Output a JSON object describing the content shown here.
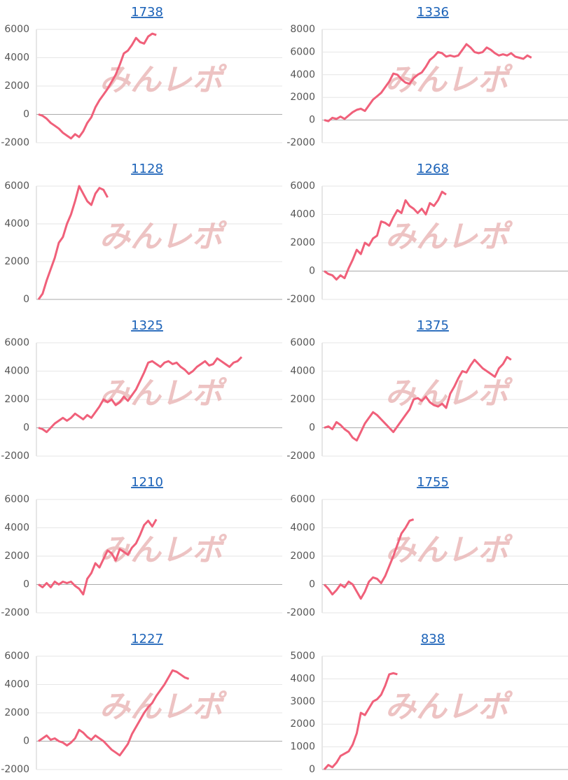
{
  "watermark": "みんレポ",
  "chart_data": [
    {
      "type": "line",
      "title": "1738",
      "color": "#f0607a",
      "ylim": [
        -2000,
        6000
      ],
      "yticks": [
        -2000,
        0,
        2000,
        4000,
        6000
      ],
      "grid": true,
      "values": [
        0,
        -100,
        -300,
        -600,
        -800,
        -1000,
        -1300,
        -1500,
        -1700,
        -1400,
        -1600,
        -1200,
        -600,
        -200,
        500,
        1000,
        1400,
        1800,
        2300,
        2800,
        3500,
        4300,
        4500,
        4900,
        5400,
        5100,
        5000,
        5500,
        5700,
        5600
      ]
    },
    {
      "type": "line",
      "title": "1336",
      "color": "#f0607a",
      "ylim": [
        -2000,
        8000
      ],
      "yticks": [
        -2000,
        0,
        2000,
        4000,
        6000,
        8000
      ],
      "grid": true,
      "values": [
        0,
        -100,
        200,
        100,
        300,
        100,
        400,
        700,
        900,
        1000,
        800,
        1300,
        1800,
        2100,
        2400,
        2900,
        3400,
        4100,
        4000,
        3600,
        3300,
        3200,
        3700,
        4000,
        4200,
        4700,
        5300,
        5600,
        6000,
        5900,
        5600,
        5700,
        5600,
        5700,
        6200,
        6700,
        6400,
        6000,
        5900,
        6000,
        6400,
        6200,
        5900,
        5700,
        5800,
        5700,
        5900,
        5600,
        5500,
        5400,
        5700,
        5500
      ]
    },
    {
      "type": "line",
      "title": "1128",
      "color": "#f0607a",
      "ylim": [
        0,
        6000
      ],
      "yticks": [
        0,
        2000,
        4000,
        6000
      ],
      "grid": true,
      "values": [
        0,
        300,
        1000,
        1600,
        2200,
        3000,
        3300,
        4000,
        4500,
        5200,
        6000,
        5600,
        5200,
        5000,
        5600,
        5900,
        5800,
        5400
      ]
    },
    {
      "type": "line",
      "title": "1268",
      "color": "#f0607a",
      "ylim": [
        -2000,
        6000
      ],
      "yticks": [
        -2000,
        0,
        2000,
        4000,
        6000
      ],
      "grid": true,
      "values": [
        0,
        -200,
        -300,
        -600,
        -300,
        -500,
        200,
        800,
        1500,
        1200,
        2000,
        1800,
        2300,
        2500,
        3500,
        3400,
        3200,
        3800,
        4300,
        4100,
        5000,
        4600,
        4400,
        4100,
        4400,
        4000,
        4800,
        4600,
        5000,
        5600,
        5400
      ]
    },
    {
      "type": "line",
      "title": "1325",
      "color": "#f0607a",
      "ylim": [
        -2000,
        6000
      ],
      "yticks": [
        -2000,
        0,
        2000,
        4000,
        6000
      ],
      "grid": true,
      "values": [
        0,
        -100,
        -300,
        0,
        300,
        500,
        700,
        500,
        700,
        1000,
        800,
        600,
        900,
        700,
        1100,
        1500,
        2000,
        1800,
        2000,
        1600,
        1800,
        2200,
        1900,
        2300,
        2700,
        3300,
        3900,
        4600,
        4700,
        4500,
        4300,
        4600,
        4700,
        4500,
        4600,
        4300,
        4100,
        3800,
        4000,
        4300,
        4500,
        4700,
        4400,
        4500,
        4900,
        4700,
        4500,
        4300,
        4600,
        4700,
        5000
      ]
    },
    {
      "type": "line",
      "title": "1375",
      "color": "#f0607a",
      "ylim": [
        -2000,
        6000
      ],
      "yticks": [
        -2000,
        0,
        2000,
        4000,
        6000
      ],
      "grid": true,
      "values": [
        0,
        100,
        -100,
        400,
        200,
        -100,
        -300,
        -700,
        -900,
        -300,
        300,
        700,
        1100,
        900,
        600,
        300,
        0,
        -300,
        100,
        500,
        900,
        1300,
        2000,
        2100,
        1900,
        2200,
        1800,
        1600,
        1500,
        1700,
        1400,
        2400,
        2900,
        3500,
        4000,
        3900,
        4400,
        4800,
        4500,
        4200,
        4000,
        3800,
        3600,
        4200,
        4500,
        5000,
        4800
      ]
    },
    {
      "type": "line",
      "title": "1210",
      "color": "#f0607a",
      "ylim": [
        -2000,
        6000
      ],
      "yticks": [
        -2000,
        0,
        2000,
        4000,
        6000
      ],
      "grid": true,
      "values": [
        0,
        -200,
        100,
        -200,
        200,
        0,
        200,
        100,
        200,
        -100,
        -300,
        -700,
        400,
        800,
        1500,
        1200,
        1800,
        2400,
        2200,
        1700,
        2500,
        2300,
        2100,
        2600,
        2900,
        3500,
        4200,
        4500,
        4100,
        4600
      ]
    },
    {
      "type": "line",
      "title": "1755",
      "color": "#f0607a",
      "ylim": [
        -2000,
        6000
      ],
      "yticks": [
        -2000,
        0,
        2000,
        4000,
        6000
      ],
      "grid": true,
      "values": [
        0,
        -300,
        -700,
        -400,
        0,
        -200,
        200,
        0,
        -500,
        -1000,
        -500,
        200,
        500,
        400,
        100,
        600,
        1300,
        2000,
        2800,
        3600,
        4000,
        4500,
        4600
      ]
    },
    {
      "type": "line",
      "title": "1227",
      "color": "#f0607a",
      "ylim": [
        -2000,
        6000
      ],
      "yticks": [
        -2000,
        0,
        2000,
        4000,
        6000
      ],
      "grid": true,
      "values": [
        0,
        200,
        400,
        100,
        200,
        0,
        -100,
        -300,
        -100,
        200,
        800,
        600,
        300,
        100,
        400,
        200,
        0,
        -300,
        -600,
        -800,
        -1000,
        -600,
        -200,
        500,
        1000,
        1500,
        2000,
        2400,
        2700,
        3200,
        3600,
        4000,
        4500,
        5000,
        4900,
        4700,
        4500,
        4400
      ]
    },
    {
      "type": "line",
      "title": "838",
      "color": "#f0607a",
      "ylim": [
        0,
        5000
      ],
      "yticks": [
        0,
        1000,
        2000,
        3000,
        4000,
        5000
      ],
      "grid": true,
      "values": [
        0,
        200,
        100,
        300,
        600,
        700,
        800,
        1100,
        1600,
        2500,
        2400,
        2700,
        3000,
        3100,
        3300,
        3700,
        4200,
        4250,
        4200
      ]
    }
  ]
}
